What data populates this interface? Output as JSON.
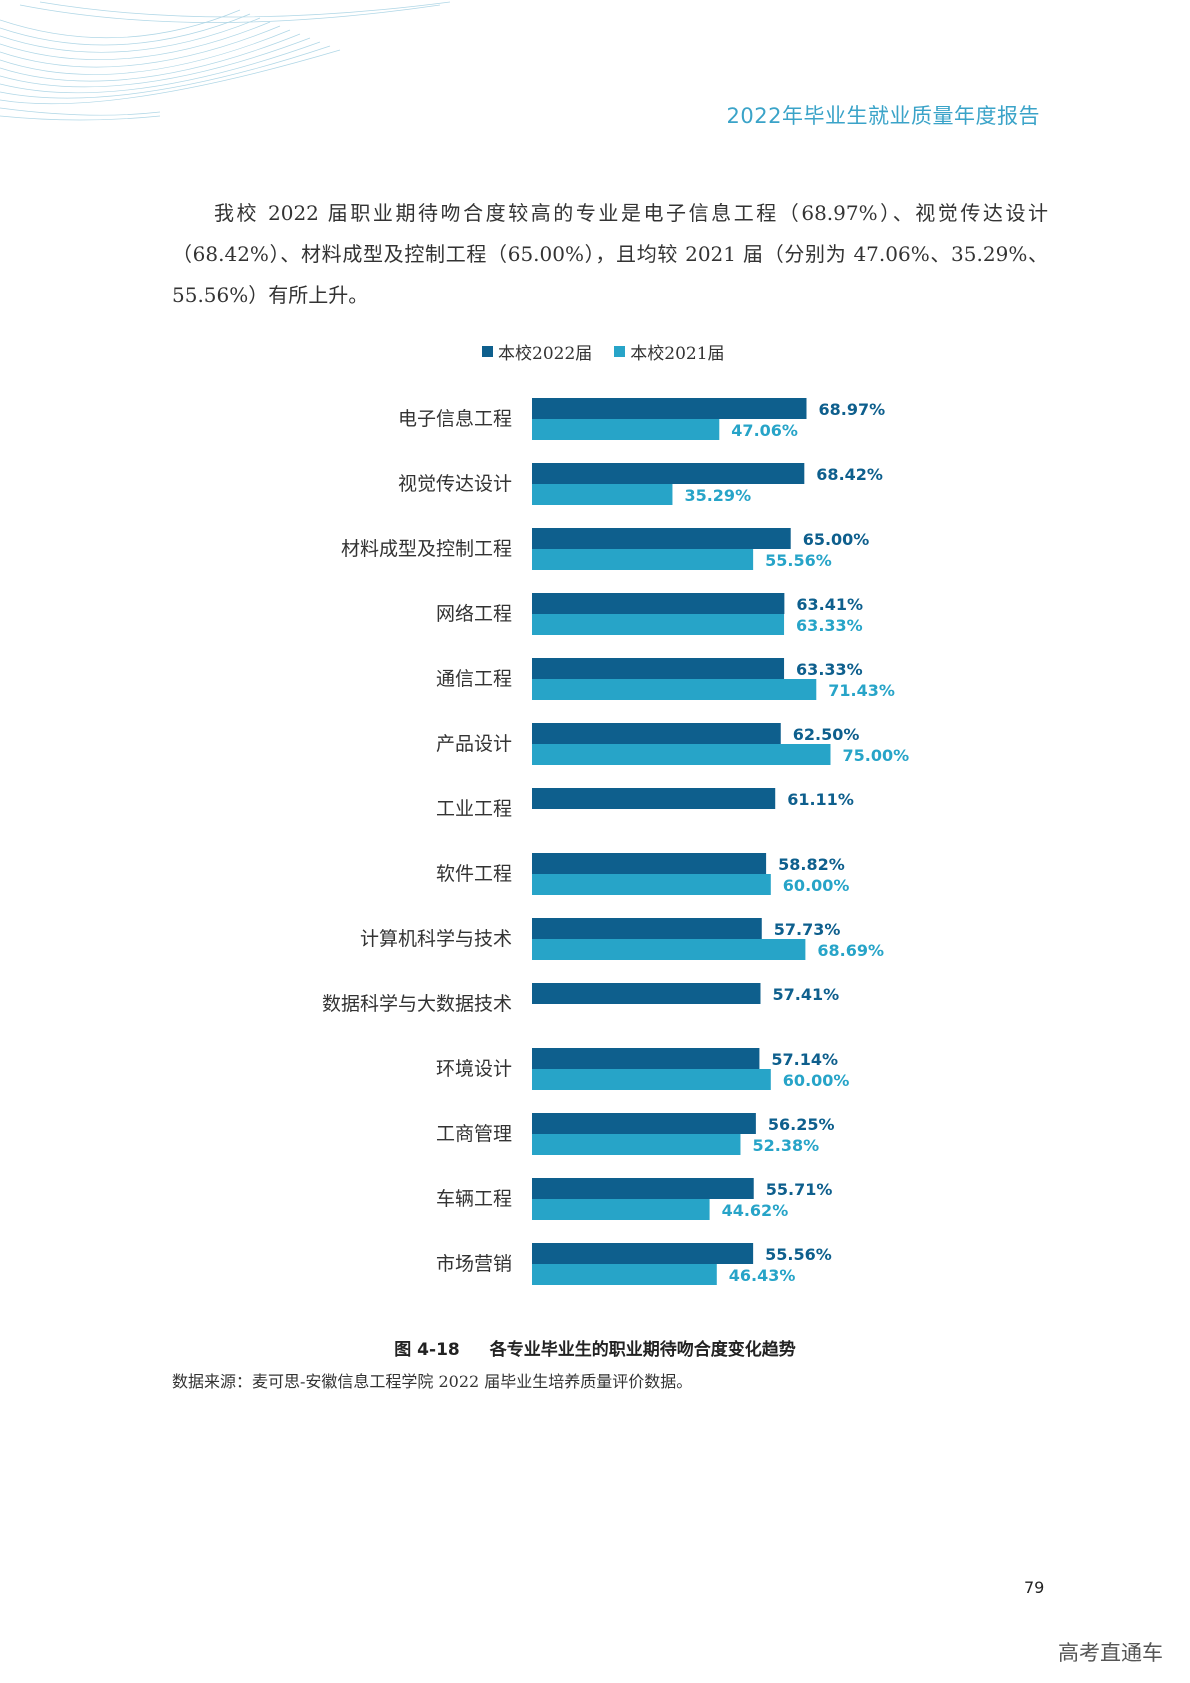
{
  "header": {
    "title": "2022年毕业生就业质量年度报告"
  },
  "paragraph": "我校 2022 届职业期待吻合度较高的专业是电子信息工程（68.97%）、视觉传达设计（68.42%）、材料成型及控制工程（65.00%），且均较 2021 届（分别为 47.06%、35.29%、55.56%）有所上升。",
  "colors": {
    "series_2022": "#0e5f8d",
    "series_2021": "#27a4c8",
    "accent": "#3aa3c8"
  },
  "chart_data": {
    "type": "bar",
    "orientation": "horizontal",
    "title": "",
    "legend_position": "top-center",
    "grid": false,
    "xlim": [
      0,
      100
    ],
    "categories": [
      "电子信息工程",
      "视觉传达设计",
      "材料成型及控制工程",
      "网络工程",
      "通信工程",
      "产品设计",
      "工业工程",
      "软件工程",
      "计算机科学与技术",
      "数据科学与大数据技术",
      "环境设计",
      "工商管理",
      "车辆工程",
      "市场营销"
    ],
    "series": [
      {
        "name": "本校2022届",
        "values": [
          68.97,
          68.42,
          65.0,
          63.41,
          63.33,
          62.5,
          61.11,
          58.82,
          57.73,
          57.41,
          57.14,
          56.25,
          55.71,
          55.56
        ],
        "labels": [
          "68.97%",
          "68.42%",
          "65.00%",
          "63.41%",
          "63.33%",
          "62.50%",
          "61.11%",
          "58.82%",
          "57.73%",
          "57.41%",
          "57.14%",
          "56.25%",
          "55.71%",
          "55.56%"
        ]
      },
      {
        "name": "本校2021届",
        "values": [
          47.06,
          35.29,
          55.56,
          63.33,
          71.43,
          75.0,
          null,
          60.0,
          68.69,
          null,
          60.0,
          52.38,
          44.62,
          46.43
        ],
        "labels": [
          "47.06%",
          "35.29%",
          "55.56%",
          "63.33%",
          "71.43%",
          "75.00%",
          "",
          "60.00%",
          "68.69%",
          "",
          "60.00%",
          "52.38%",
          "44.62%",
          "46.43%"
        ]
      }
    ]
  },
  "figure": {
    "number": "图 4-18",
    "title": "各专业毕业生的职业期待吻合度变化趋势"
  },
  "source_note": "数据来源：麦可思-安徽信息工程学院 2022 届毕业生培养质量评价数据。",
  "page_number": "79",
  "watermark": "高考直通车"
}
